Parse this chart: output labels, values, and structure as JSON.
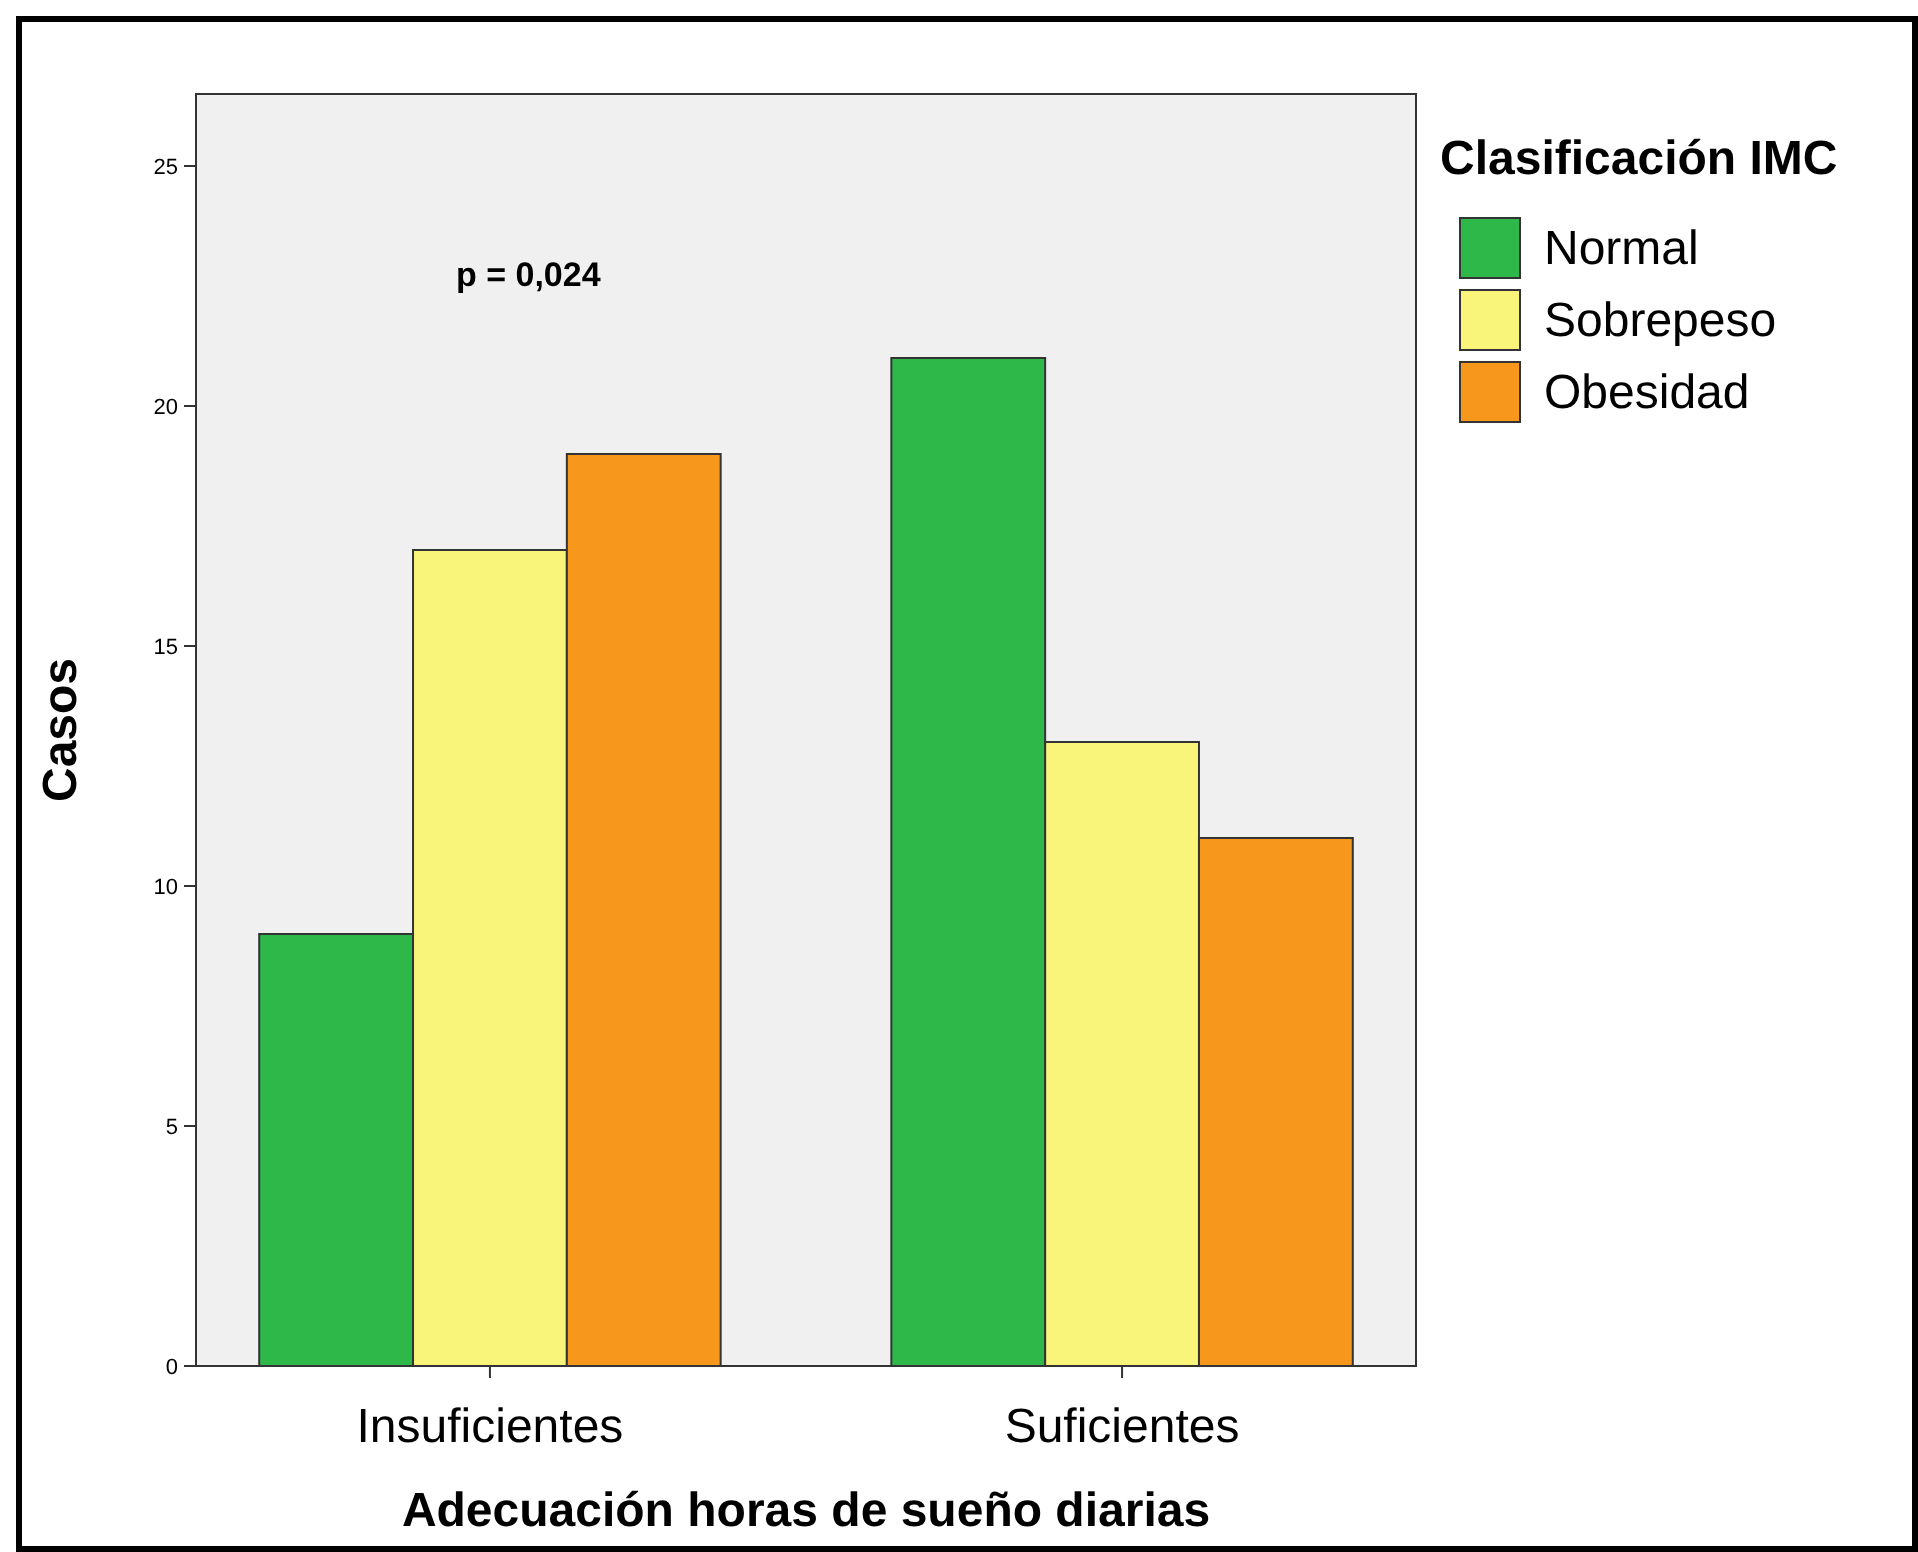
{
  "chart_data": {
    "type": "bar",
    "xlabel": "Adecuación horas de sueño diarias",
    "ylabel": "Casos",
    "legend_title": "Clasificación IMC",
    "categories": [
      "Insuficientes",
      "Suficientes"
    ],
    "series": [
      {
        "name": "Normal",
        "color": "#2eb84a",
        "values": [
          9,
          21
        ]
      },
      {
        "name": "Sobrepeso",
        "color": "#f9f57a",
        "values": [
          17,
          13
        ]
      },
      {
        "name": "Obesidad",
        "color": "#f7981d",
        "values": [
          19,
          11
        ]
      }
    ],
    "ylim": [
      0,
      26.5
    ],
    "yticks": [
      0,
      5,
      10,
      15,
      20,
      25
    ],
    "grid": false,
    "legend": "right",
    "annotations": [
      "p = 0,024"
    ]
  }
}
